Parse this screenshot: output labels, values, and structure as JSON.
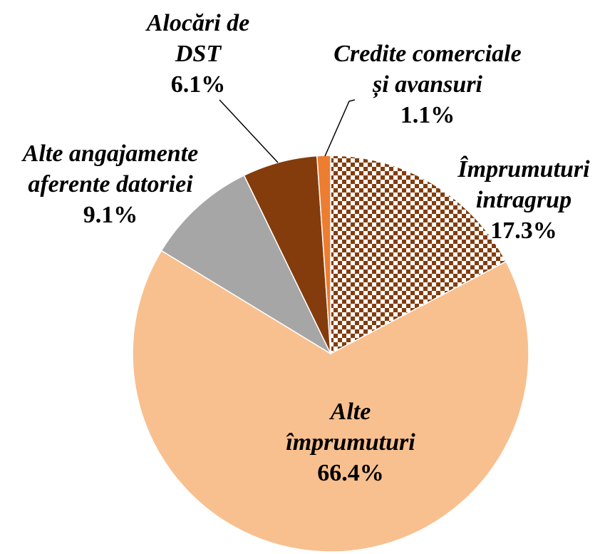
{
  "chart_data": {
    "type": "pie",
    "categories": [
      "Împrumuturi\nintragrup",
      "Alte\nîmprumuturi",
      "Alte angajamente\naferente datoriei",
      "Alocări de\nDST",
      "Credite comerciale\nși avansuri"
    ],
    "values": [
      17.3,
      66.4,
      9.1,
      6.1,
      1.1
    ],
    "value_labels": [
      "17.3%",
      "66.4%",
      "9.1%",
      "6.1%",
      "1.1%"
    ],
    "colors": [
      "#843C0C",
      "#F8C08F",
      "#A6A6A6",
      "#843C0C",
      "#ED7D31"
    ],
    "patterns": [
      "checkerboard",
      null,
      null,
      null,
      null
    ]
  }
}
